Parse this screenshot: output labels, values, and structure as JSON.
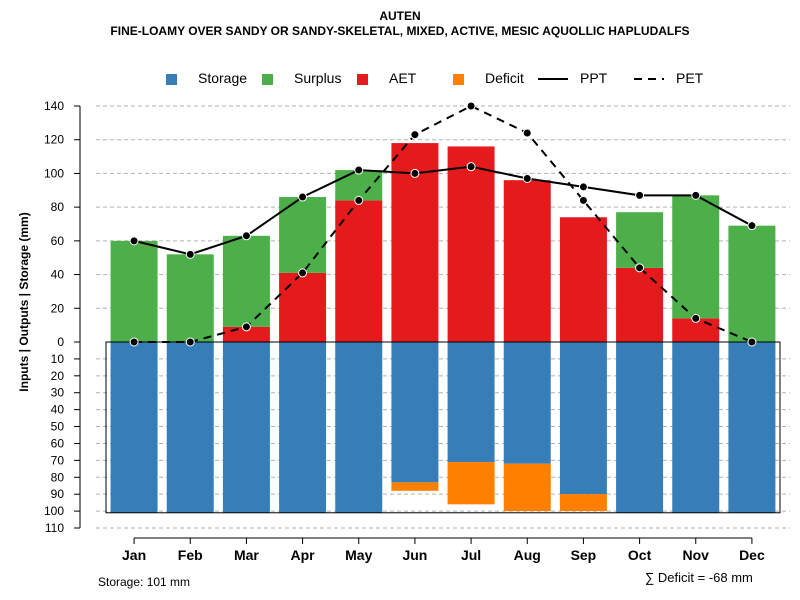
{
  "chart_data": {
    "type": "bar",
    "title": "AUTEN",
    "subtitle": "FINE-LOAMY OVER SANDY OR SANDY-SKELETAL, MIXED, ACTIVE, MESIC AQUOLLIC HAPLUDALFS",
    "ylabel": "Inputs | Outputs | Storage    (mm)",
    "categories": [
      "Jan",
      "Feb",
      "Mar",
      "Apr",
      "May",
      "Jun",
      "Jul",
      "Aug",
      "Sep",
      "Oct",
      "Nov",
      "Dec"
    ],
    "upper_ticks": [
      "0",
      "20",
      "40",
      "60",
      "80",
      "100",
      "120",
      "140"
    ],
    "lower_ticks": [
      "10",
      "20",
      "30",
      "40",
      "50",
      "60",
      "70",
      "80",
      "90",
      "100",
      "110"
    ],
    "upper_ylim": [
      0,
      140
    ],
    "lower_ylim": [
      0,
      110
    ],
    "series": [
      {
        "name": "Storage",
        "color": "#377EB8",
        "values": [
          101,
          101,
          101,
          101,
          101,
          83,
          71,
          72,
          90,
          101,
          101,
          101
        ]
      },
      {
        "name": "Surplus",
        "color": "#4DAF4A",
        "values": [
          60,
          52,
          54,
          45,
          18,
          0,
          0,
          0,
          0,
          33,
          73,
          69
        ]
      },
      {
        "name": "AET",
        "color": "#E41A1C",
        "values": [
          0,
          0,
          9,
          41,
          84,
          118,
          116,
          96,
          74,
          44,
          14,
          0
        ]
      },
      {
        "name": "Deficit",
        "color": "#FF7F00",
        "values": [
          0,
          0,
          0,
          0,
          0,
          -5,
          -25,
          -28,
          -10,
          0,
          0,
          0
        ]
      },
      {
        "name": "PPT",
        "color": "#000000",
        "line": "solid",
        "values": [
          60,
          52,
          63,
          86,
          102,
          100,
          104,
          97,
          92,
          87,
          87,
          69
        ]
      },
      {
        "name": "PET",
        "color": "#000000",
        "line": "dashed",
        "values": [
          0,
          0,
          9,
          41,
          84,
          123,
          140,
          124,
          84,
          44,
          14,
          0
        ]
      }
    ],
    "legend": [
      "Storage",
      "Surplus",
      "AET",
      "Deficit",
      "PPT",
      "PET"
    ],
    "legend_position": "top",
    "storage_note": "Storage: 101 mm",
    "deficit_note": "∑ Deficit = -68 mm"
  }
}
